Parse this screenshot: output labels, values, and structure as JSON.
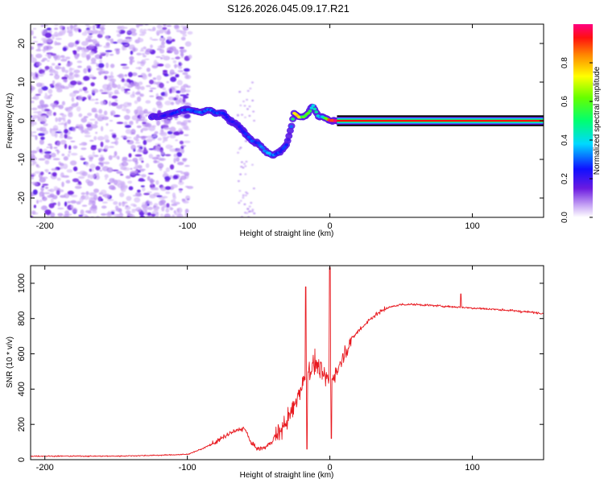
{
  "chart_data": [
    {
      "type": "heatmap",
      "title": "S126.2026.045.09.17.R21",
      "xlabel": "Height of straight line (km)",
      "ylabel": "Frequency (Hz)",
      "xlim": [
        -210,
        150
      ],
      "ylim": [
        -25,
        25
      ],
      "xticks": [
        -200,
        -100,
        0,
        100
      ],
      "yticks": [
        -20,
        -10,
        0,
        10,
        20
      ],
      "colorbar": {
        "label": "Normalized spectral amplitude",
        "range": [
          0,
          1
        ],
        "ticks": [
          "0.0",
          "0.2",
          "0.4",
          "0.6",
          "0.8"
        ]
      },
      "ridge": {
        "name": "signal ridge (peak frequency)",
        "x": [
          -120,
          -110,
          -100,
          -90,
          -85,
          -80,
          -75,
          -70,
          -65,
          -60,
          -55,
          -50,
          -45,
          -40,
          -35,
          -30,
          -28,
          -25,
          -22,
          -18,
          -15,
          -12,
          -8,
          -5,
          0,
          5,
          10,
          150
        ],
        "freq": [
          1,
          2,
          3,
          2,
          3,
          2,
          2,
          0,
          -1,
          -3,
          -5,
          -6,
          -8,
          -9,
          -8,
          -6,
          -3,
          2,
          1,
          1,
          2,
          4,
          1,
          1,
          0,
          0,
          0,
          0
        ],
        "amp": [
          0.2,
          0.25,
          0.3,
          0.32,
          0.3,
          0.3,
          0.28,
          0.25,
          0.25,
          0.25,
          0.28,
          0.3,
          0.35,
          0.35,
          0.3,
          0.25,
          0.2,
          0.7,
          0.75,
          0.6,
          0.55,
          0.5,
          0.45,
          0.4,
          1,
          1,
          1,
          1
        ]
      }
    },
    {
      "type": "line",
      "xlabel": "Height of straight line (km)",
      "ylabel": "SNR (10 * v/v)",
      "xlim": [
        -210,
        150
      ],
      "ylim": [
        0,
        1100
      ],
      "xticks": [
        -200,
        -100,
        0,
        100
      ],
      "yticks": [
        0,
        200,
        400,
        600,
        800,
        1000
      ],
      "series": [
        {
          "name": "SNR",
          "color": "#e8191f",
          "x": [
            -210,
            -180,
            -150,
            -120,
            -100,
            -90,
            -80,
            -70,
            -60,
            -55,
            -50,
            -45,
            -40,
            -35,
            -30,
            -25,
            -20,
            -15,
            -10,
            -5,
            0,
            5,
            10,
            15,
            20,
            30,
            40,
            50,
            60,
            80,
            100,
            120,
            150
          ],
          "values": [
            20,
            20,
            20,
            25,
            30,
            60,
            100,
            150,
            180,
            90,
            60,
            70,
            110,
            160,
            220,
            300,
            420,
            500,
            550,
            480,
            450,
            500,
            600,
            680,
            730,
            810,
            860,
            880,
            880,
            870,
            860,
            850,
            830
          ],
          "spikes": [
            {
              "x": -17,
              "value": 980
            },
            {
              "x": -16,
              "value": 60
            },
            {
              "x": 0,
              "value": 1090
            },
            {
              "x": 1,
              "value": 120
            },
            {
              "x": 92,
              "value": 940
            }
          ]
        }
      ]
    }
  ]
}
